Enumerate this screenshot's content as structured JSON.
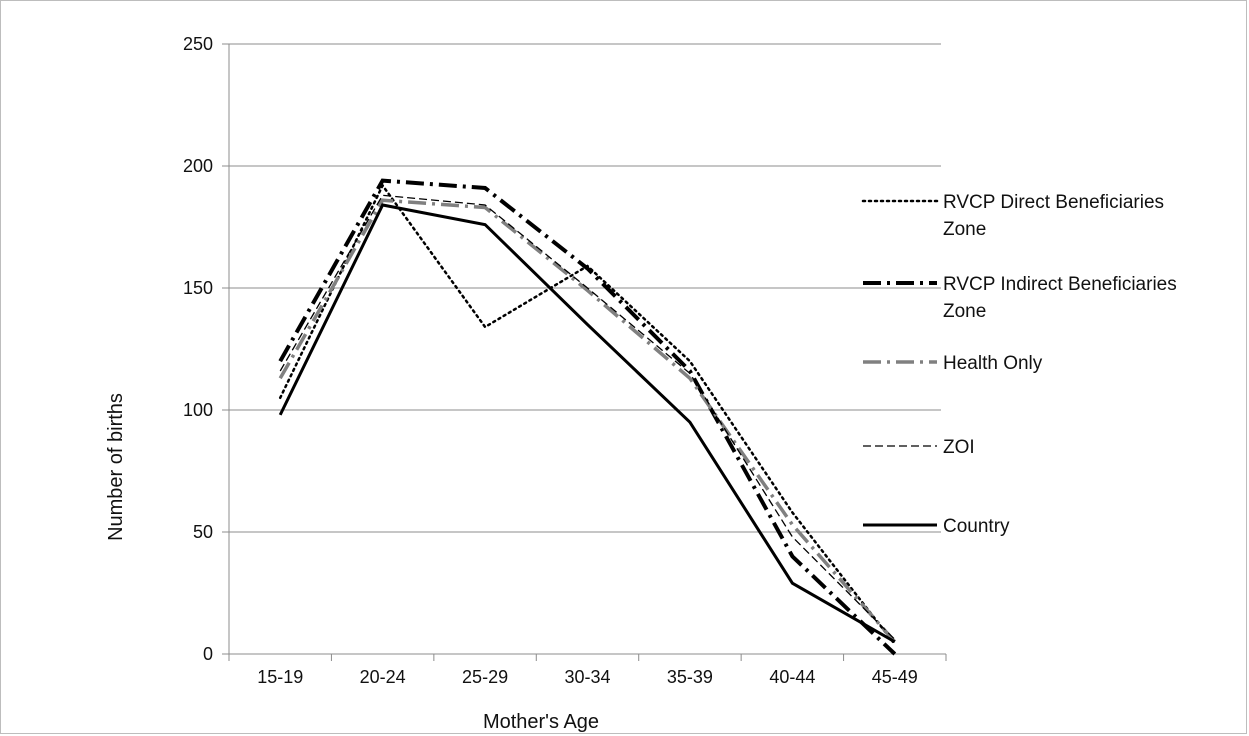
{
  "chart_data": {
    "type": "line",
    "title": "",
    "xlabel": "Mother's Age",
    "ylabel": "Number of births",
    "categories": [
      "15-19",
      "20-24",
      "25-29",
      "30-34",
      "35-39",
      "40-44",
      "45-49"
    ],
    "ylim": [
      0,
      250
    ],
    "yticks": [
      0,
      50,
      100,
      150,
      200,
      250
    ],
    "grid": true,
    "legend_position": "right",
    "series": [
      {
        "name": "RVCP Direct Beneficiaries Zone",
        "name_lines": [
          "RVCP Direct Beneficiaries",
          "Zone"
        ],
        "values": [
          105,
          192,
          134,
          159,
          120,
          58,
          4
        ],
        "color": "#000000",
        "style": "dotted"
      },
      {
        "name": "RVCP Indirect Beneficiaries Zone",
        "name_lines": [
          "RVCP Indirect Beneficiaries",
          "Zone"
        ],
        "values": [
          120,
          194,
          191,
          158,
          116,
          40,
          0
        ],
        "color": "#000000",
        "style": "dash-dot-heavy"
      },
      {
        "name": "Health Only",
        "name_lines": [
          "Health Only"
        ],
        "values": [
          113,
          186,
          183,
          149,
          113,
          53,
          5
        ],
        "color": "#808080",
        "style": "dash-dot-gray"
      },
      {
        "name": "ZOI",
        "name_lines": [
          "ZOI"
        ],
        "values": [
          116,
          188,
          184,
          150,
          115,
          48,
          6
        ],
        "color": "#000000",
        "style": "dashed-thin"
      },
      {
        "name": "Country",
        "name_lines": [
          "Country"
        ],
        "values": [
          98,
          184,
          176,
          135,
          95,
          29,
          5
        ],
        "color": "#000000",
        "style": "solid"
      }
    ]
  }
}
